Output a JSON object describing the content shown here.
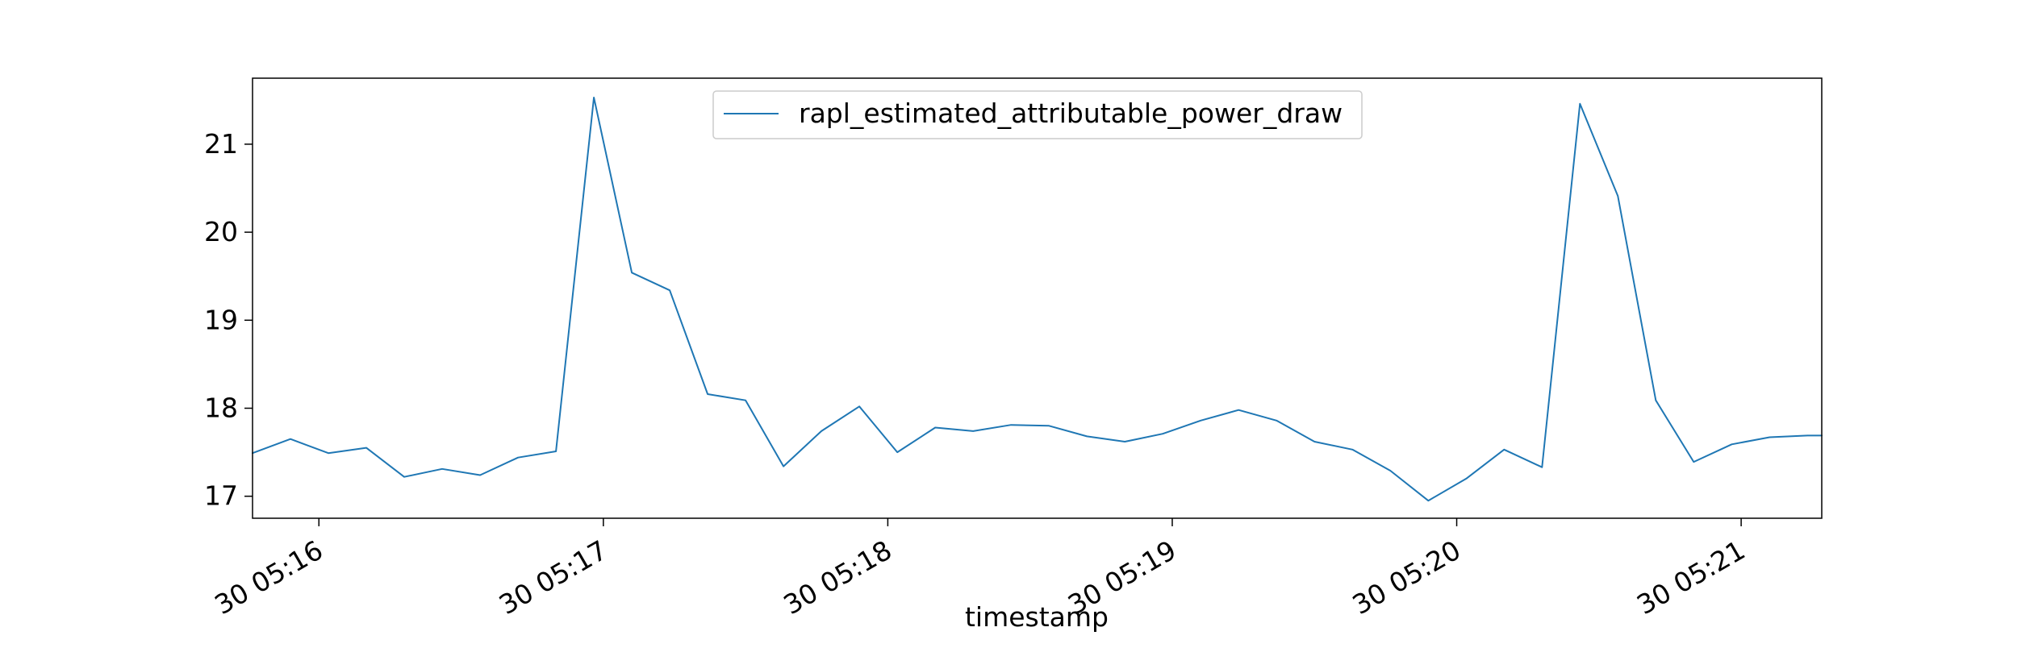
{
  "chart_data": {
    "type": "line",
    "title": "",
    "xlabel": "timestamp",
    "ylabel": "",
    "x_ticks": [
      "30 05:16",
      "30 05:17",
      "30 05:18",
      "30 05:19",
      "30 05:20",
      "30 05:21"
    ],
    "y_ticks": [
      "17",
      "18",
      "19",
      "20",
      "21"
    ],
    "xlim": [
      "05:15:46",
      "05:21:17"
    ],
    "ylim": [
      16.75,
      21.75
    ],
    "grid": false,
    "legend_position": "top-center",
    "series": [
      {
        "name": "rapl_estimated_attributable_power_draw",
        "color": "#1f77b4",
        "x": [
          "05:15:46",
          "05:15:54",
          "05:16:02",
          "05:16:10",
          "05:16:18",
          "05:16:26",
          "05:16:34",
          "05:16:42",
          "05:16:50",
          "05:16:58",
          "05:17:06",
          "05:17:14",
          "05:17:22",
          "05:17:30",
          "05:17:38",
          "05:17:46",
          "05:17:54",
          "05:18:02",
          "05:18:10",
          "05:18:18",
          "05:18:26",
          "05:18:34",
          "05:18:42",
          "05:18:50",
          "05:18:58",
          "05:19:06",
          "05:19:14",
          "05:19:22",
          "05:19:30",
          "05:19:38",
          "05:19:46",
          "05:19:54",
          "05:20:02",
          "05:20:10",
          "05:20:18",
          "05:20:26",
          "05:20:34",
          "05:20:42",
          "05:20:50",
          "05:20:58",
          "05:21:06",
          "05:21:14",
          "05:21:17"
        ],
        "y": [
          17.49,
          17.65,
          17.49,
          17.55,
          17.22,
          17.31,
          17.24,
          17.44,
          17.51,
          21.53,
          19.54,
          19.34,
          18.16,
          18.09,
          17.34,
          17.74,
          18.02,
          17.5,
          17.78,
          17.74,
          17.81,
          17.8,
          17.68,
          17.62,
          17.71,
          17.86,
          17.98,
          17.86,
          17.62,
          17.53,
          17.29,
          16.95,
          17.2,
          17.53,
          17.33,
          21.46,
          20.41,
          18.09,
          17.39,
          17.59,
          17.67,
          17.69,
          17.69
        ]
      }
    ]
  }
}
